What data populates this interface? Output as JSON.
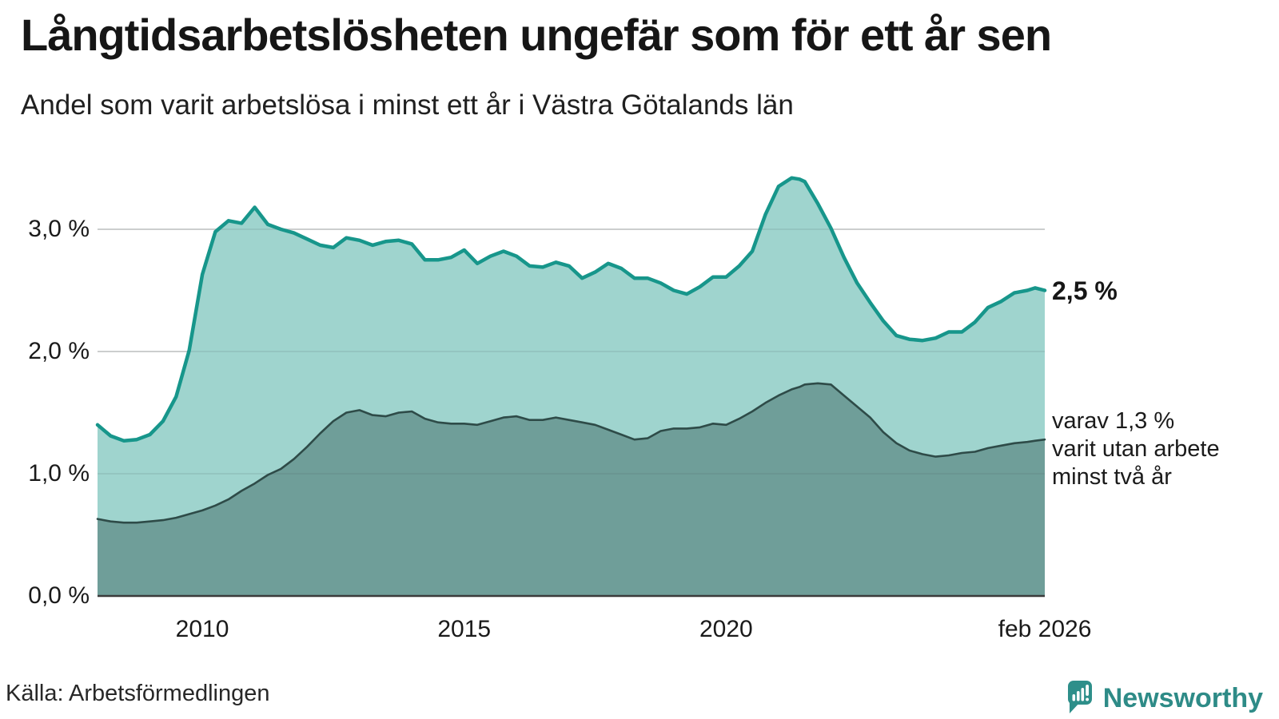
{
  "header": {
    "title": "Långtidsarbetslösheten ungefär som för ett år sen",
    "subtitle": "Andel som varit arbetslösa i minst ett år i Västra Götalands län"
  },
  "annotations": {
    "total": "2,5 %",
    "secondary": [
      "varav 1,3 %",
      "varit utan arbete",
      "minst två år"
    ]
  },
  "source": {
    "label": "Källa: Arbetsförmedlingen"
  },
  "branding": {
    "name": "Newsworthy",
    "logo_color": "#2e8f8a",
    "text_color": "#2e8b87"
  },
  "chart_data": {
    "type": "area",
    "title": "Långtidsarbetslösheten ungefär som för ett år sen",
    "xlabel": "",
    "ylabel": "",
    "grid": true,
    "x_range": [
      2008,
      2026.083
    ],
    "y_range": [
      0,
      3.6
    ],
    "y_ticks": [
      {
        "value": 0,
        "label": "0,0 %"
      },
      {
        "value": 1,
        "label": "1,0 %"
      },
      {
        "value": 2,
        "label": "2,0 %"
      },
      {
        "value": 3,
        "label": "3,0 %"
      }
    ],
    "x_ticks": [
      {
        "year": 2010,
        "label": "2010"
      },
      {
        "year": 2015,
        "label": "2015"
      },
      {
        "year": 2020,
        "label": "2020"
      },
      {
        "year": 2026.083,
        "label": "feb 2026"
      }
    ],
    "x": [
      2008,
      2008.25,
      2008.5,
      2008.75,
      2009,
      2009.25,
      2009.5,
      2009.75,
      2010,
      2010.25,
      2010.5,
      2010.75,
      2011,
      2011.25,
      2011.5,
      2011.75,
      2012,
      2012.25,
      2012.5,
      2012.75,
      2013,
      2013.25,
      2013.5,
      2013.75,
      2014,
      2014.25,
      2014.5,
      2014.75,
      2015,
      2015.25,
      2015.5,
      2015.75,
      2016,
      2016.25,
      2016.5,
      2016.75,
      2017,
      2017.25,
      2017.5,
      2017.75,
      2018,
      2018.25,
      2018.5,
      2018.75,
      2019,
      2019.25,
      2019.5,
      2019.75,
      2020,
      2020.25,
      2020.5,
      2020.75,
      2021,
      2021.25,
      2021.4,
      2021.5,
      2021.75,
      2022,
      2022.25,
      2022.5,
      2022.75,
      2023,
      2023.25,
      2023.5,
      2023.75,
      2024,
      2024.25,
      2024.5,
      2024.75,
      2025,
      2025.25,
      2025.5,
      2025.75,
      2025.9,
      2026.083
    ],
    "series": [
      {
        "name": "arbetslösa minst ett år",
        "color": "#17968b",
        "fill": "#9fd4ce",
        "values": [
          1.4,
          1.31,
          1.27,
          1.28,
          1.32,
          1.43,
          1.63,
          2.01,
          2.63,
          2.98,
          3.07,
          3.05,
          3.18,
          3.04,
          3.0,
          2.97,
          2.92,
          2.87,
          2.85,
          2.93,
          2.91,
          2.87,
          2.9,
          2.91,
          2.88,
          2.75,
          2.75,
          2.77,
          2.83,
          2.72,
          2.78,
          2.82,
          2.78,
          2.7,
          2.69,
          2.73,
          2.7,
          2.6,
          2.65,
          2.72,
          2.68,
          2.6,
          2.6,
          2.56,
          2.5,
          2.47,
          2.53,
          2.61,
          2.61,
          2.7,
          2.82,
          3.12,
          3.35,
          3.42,
          3.41,
          3.39,
          3.21,
          3.01,
          2.77,
          2.56,
          2.4,
          2.25,
          2.13,
          2.1,
          2.09,
          2.11,
          2.16,
          2.16,
          2.24,
          2.36,
          2.41,
          2.48,
          2.5,
          2.52,
          2.5
        ]
      },
      {
        "name": "varav utan arbete minst två år",
        "color": "#2e4b48",
        "fill": "#6f9e99",
        "values": [
          0.63,
          0.61,
          0.6,
          0.6,
          0.61,
          0.62,
          0.64,
          0.67,
          0.7,
          0.74,
          0.79,
          0.86,
          0.92,
          0.99,
          1.04,
          1.12,
          1.22,
          1.33,
          1.43,
          1.5,
          1.52,
          1.48,
          1.47,
          1.5,
          1.51,
          1.45,
          1.42,
          1.41,
          1.41,
          1.4,
          1.43,
          1.46,
          1.47,
          1.44,
          1.44,
          1.46,
          1.44,
          1.42,
          1.4,
          1.36,
          1.32,
          1.28,
          1.29,
          1.35,
          1.37,
          1.37,
          1.38,
          1.41,
          1.4,
          1.45,
          1.51,
          1.58,
          1.64,
          1.69,
          1.71,
          1.73,
          1.74,
          1.73,
          1.64,
          1.55,
          1.46,
          1.34,
          1.25,
          1.19,
          1.16,
          1.14,
          1.15,
          1.17,
          1.18,
          1.21,
          1.23,
          1.25,
          1.26,
          1.27,
          1.28
        ]
      }
    ],
    "latest_values": {
      "minst_ett_ar": "2,5 %",
      "minst_tva_ar": "1,3 %"
    }
  }
}
